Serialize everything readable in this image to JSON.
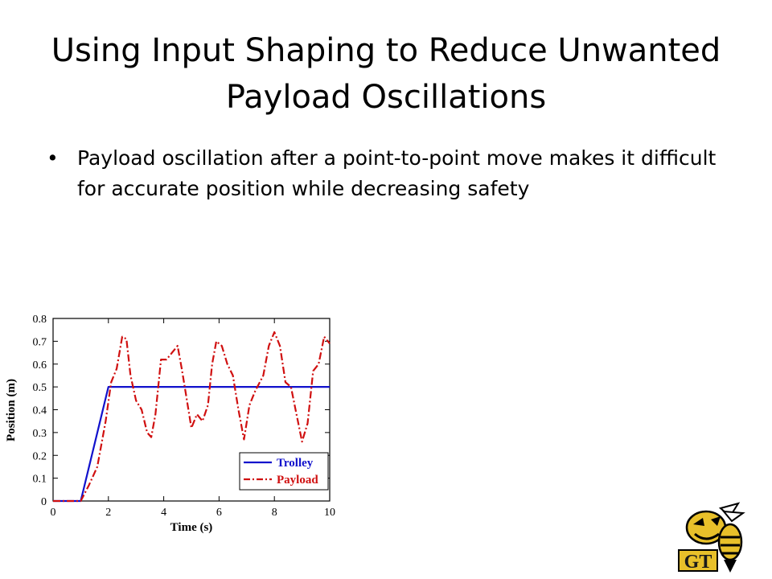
{
  "slide": {
    "title": "Using Input Shaping to Reduce Unwanted Payload Oscillations",
    "bullets": [
      "Payload oscillation after a point-to-point move makes it difficult for accurate position while decreasing safety"
    ]
  },
  "logo": {
    "text": "GT",
    "icon": "yellow-jacket-mascot-icon"
  },
  "colors": {
    "trolley": "#1111cc",
    "payload": "#d01010",
    "logo_gold": "#e8c02a"
  },
  "chart_data": {
    "type": "line",
    "xlabel": "Time (s)",
    "ylabel": "Position (m)",
    "xlim": [
      0,
      10
    ],
    "ylim": [
      0,
      0.8
    ],
    "xticks": [
      0,
      2,
      4,
      6,
      8,
      10
    ],
    "yticks": [
      0,
      0.1,
      0.2,
      0.3,
      0.4,
      0.5,
      0.6,
      0.7,
      0.8
    ],
    "legend_position": "bottom-right",
    "series": [
      {
        "name": "Trolley",
        "color": "#1111cc",
        "style": "solid",
        "x": [
          0,
          1.0,
          2.0,
          10.0
        ],
        "y": [
          0,
          0,
          0.5,
          0.5
        ]
      },
      {
        "name": "Payload",
        "color": "#d01010",
        "style": "dashdot",
        "x": [
          0,
          1.0,
          1.3,
          1.6,
          1.9,
          2.1,
          2.3,
          2.5,
          2.65,
          2.8,
          3.0,
          3.2,
          3.4,
          3.55,
          3.7,
          3.9,
          4.1,
          4.3,
          4.5,
          4.65,
          4.8,
          5.0,
          5.2,
          5.4,
          5.6,
          5.75,
          5.9,
          6.1,
          6.3,
          6.5,
          6.7,
          6.9,
          7.1,
          7.3,
          7.6,
          7.8,
          8.0,
          8.2,
          8.4,
          8.6,
          8.8,
          9.0,
          9.2,
          9.4,
          9.6,
          9.8,
          10.0
        ],
        "y": [
          0,
          0,
          0.07,
          0.15,
          0.35,
          0.52,
          0.58,
          0.72,
          0.71,
          0.55,
          0.44,
          0.4,
          0.3,
          0.28,
          0.38,
          0.62,
          0.62,
          0.65,
          0.68,
          0.58,
          0.47,
          0.32,
          0.38,
          0.35,
          0.42,
          0.6,
          0.7,
          0.68,
          0.6,
          0.55,
          0.4,
          0.27,
          0.42,
          0.48,
          0.55,
          0.68,
          0.74,
          0.68,
          0.52,
          0.5,
          0.38,
          0.26,
          0.34,
          0.57,
          0.6,
          0.72,
          0.69
        ]
      }
    ]
  }
}
